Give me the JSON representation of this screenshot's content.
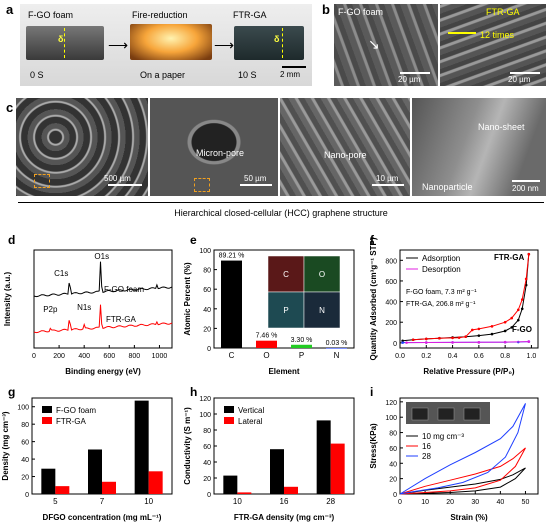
{
  "panel_a": {
    "label": "a",
    "steps": [
      "F-GO foam",
      "Fire-reduction",
      "FTR-GA"
    ],
    "times": [
      "0 S",
      "On a paper",
      "10 S"
    ],
    "delta_labels": [
      "δ",
      "δ"
    ],
    "scale": "2 mm"
  },
  "panel_b": {
    "label": "b",
    "left_title": "F-GO foam",
    "left_scale": "20 µm",
    "right_title": "FTR-GA",
    "right_annotation": "12 times",
    "right_scale": "20 µm"
  },
  "panel_c": {
    "label": "c",
    "images": [
      {
        "annotation": "",
        "scale": "500 µm"
      },
      {
        "annotation": "Micron-pore",
        "scale": "50 µm"
      },
      {
        "annotation": "Nano-pore",
        "scale": "10 µm"
      },
      {
        "annotation": "Nano-sheet",
        "annotation2": "Nanoparticle",
        "scale": "200 nm"
      }
    ],
    "caption": "Hierarchical closed-cellular (HCC) graphene structure"
  },
  "colors": {
    "black": "#000000",
    "red": "#ff0000",
    "blue": "#1f3fff",
    "magenta": "#e020e0",
    "green": "#22cc22"
  },
  "chart_data": [
    {
      "id": "d",
      "type": "line",
      "label": "d",
      "xlabel": "Binding energy (eV)",
      "ylabel": "Intensity (a.u.)",
      "xticks": [
        "0",
        "200",
        "400",
        "600",
        "800",
        "1000"
      ],
      "xlim": [
        0,
        1100
      ],
      "series": [
        {
          "name": "F-GO foam",
          "peaks": [
            "C1s",
            "O1s"
          ]
        },
        {
          "name": "FTR-GA",
          "peaks": [
            "P2p",
            "N1s"
          ]
        }
      ]
    },
    {
      "id": "e",
      "type": "bar",
      "label": "e",
      "categories": [
        "C",
        "O",
        "P",
        "N"
      ],
      "values": [
        89.21,
        7.46,
        3.3,
        0.03
      ],
      "value_labels": [
        "89.21 %",
        "7.46 %",
        "3.30 %",
        "0.03 %"
      ],
      "xlabel": "Element",
      "ylabel": "Atomic Percent (%)",
      "ylim": [
        0,
        100
      ],
      "yticks": [
        "0",
        "20",
        "40",
        "60",
        "80",
        "100"
      ],
      "map_labels": [
        "C",
        "O",
        "P",
        "N"
      ]
    },
    {
      "id": "f",
      "type": "line",
      "label": "f",
      "title": "FTR-GA",
      "xlabel": "Relative Pressure (P/P₀)",
      "ylabel": "Quantity Adsorbed (cm³g⁻¹ STP)",
      "xticks": [
        "0.0",
        "0.2",
        "0.4",
        "0.6",
        "0.8",
        "1.0"
      ],
      "yticks": [
        "0",
        "200",
        "400",
        "600",
        "800"
      ],
      "xlim": [
        0,
        1.05
      ],
      "ylim": [
        -50,
        900
      ],
      "legend": [
        "Adsorption",
        "Desorption"
      ],
      "annotations": [
        "F-GO foam, 7.3 m² g⁻¹",
        "FTR-GA, 206.8 m² g⁻¹",
        "F-GO"
      ],
      "series": [
        {
          "name": "Adsorption",
          "x": [
            0.02,
            0.1,
            0.2,
            0.3,
            0.4,
            0.5,
            0.6,
            0.7,
            0.8,
            0.85,
            0.9,
            0.93,
            0.96,
            0.98
          ],
          "y": [
            20,
            30,
            38,
            45,
            52,
            60,
            70,
            85,
            115,
            150,
            220,
            330,
            560,
            860
          ]
        },
        {
          "name": "Desorption",
          "x": [
            0.98,
            0.96,
            0.93,
            0.9,
            0.85,
            0.8,
            0.7,
            0.6,
            0.55,
            0.5,
            0.45,
            0.4,
            0.3,
            0.2,
            0.1
          ],
          "y": [
            860,
            620,
            420,
            320,
            240,
            200,
            160,
            135,
            125,
            60,
            50,
            48,
            44,
            38,
            30
          ]
        },
        {
          "name": "F-GO Adsorption",
          "x": [
            0.02,
            0.2,
            0.4,
            0.6,
            0.8,
            0.9,
            0.98
          ],
          "y": [
            2,
            3,
            4,
            5,
            6,
            8,
            12
          ]
        },
        {
          "name": "F-GO Desorption",
          "x": [
            0.98,
            0.8,
            0.6,
            0.4,
            0.2,
            0.05
          ],
          "y": [
            12,
            7,
            5,
            4,
            3,
            2
          ]
        }
      ]
    },
    {
      "id": "g",
      "type": "bar",
      "label": "g",
      "categories": [
        "5",
        "7",
        "10"
      ],
      "series": [
        {
          "name": "F-GO foam",
          "values": [
            29,
            51,
            107
          ]
        },
        {
          "name": "FTR-GA",
          "values": [
            9,
            14,
            26
          ]
        }
      ],
      "xlabel": "DFGO concentration (mg mL⁻¹)",
      "ylabel": "Density (mg cm⁻³)",
      "ylim": [
        0,
        110
      ],
      "yticks": [
        "0",
        "20",
        "40",
        "60",
        "80",
        "100"
      ]
    },
    {
      "id": "h",
      "type": "bar",
      "label": "h",
      "categories": [
        "10",
        "16",
        "28"
      ],
      "series": [
        {
          "name": "Vertical",
          "values": [
            23,
            56,
            92
          ]
        },
        {
          "name": "Lateral",
          "values": [
            2,
            9,
            63
          ]
        }
      ],
      "xlabel": "FTR-GA density (mg cm⁻³)",
      "ylabel": "Conductivity (S m⁻¹)",
      "ylim": [
        0,
        120
      ],
      "yticks": [
        "0",
        "20",
        "40",
        "60",
        "80",
        "100",
        "120"
      ]
    },
    {
      "id": "i",
      "type": "line",
      "label": "i",
      "xlabel": "Strain (%)",
      "ylabel": "Stress(KPa)",
      "xticks": [
        "0",
        "10",
        "20",
        "30",
        "40",
        "50"
      ],
      "yticks": [
        "0",
        "20",
        "40",
        "60",
        "80",
        "100",
        "120"
      ],
      "xlim": [
        0,
        55
      ],
      "ylim": [
        0,
        125
      ],
      "legend": [
        "10 mg cm⁻³",
        "16",
        "28"
      ],
      "series": [
        {
          "name": "10 mg cm⁻³",
          "load_x": [
            0,
            10,
            20,
            30,
            40,
            45,
            50
          ],
          "load_y": [
            0,
            5,
            9,
            13,
            19,
            25,
            34
          ],
          "unload_x": [
            50,
            46,
            40,
            30,
            20,
            10,
            0
          ],
          "unload_y": [
            34,
            20,
            9,
            4,
            2,
            1,
            0
          ]
        },
        {
          "name": "16",
          "load_x": [
            0,
            10,
            20,
            30,
            40,
            45,
            50
          ],
          "load_y": [
            0,
            10,
            18,
            26,
            36,
            46,
            60
          ],
          "unload_x": [
            50,
            46,
            40,
            30,
            20,
            10,
            0
          ],
          "unload_y": [
            60,
            36,
            18,
            8,
            4,
            2,
            0
          ]
        },
        {
          "name": "28",
          "load_x": [
            0,
            10,
            20,
            30,
            40,
            45,
            50
          ],
          "load_y": [
            0,
            20,
            38,
            54,
            72,
            88,
            118
          ],
          "unload_x": [
            50,
            47,
            42,
            35,
            25,
            15,
            5,
            0
          ],
          "unload_y": [
            118,
            80,
            48,
            28,
            15,
            8,
            3,
            0
          ]
        }
      ]
    }
  ]
}
